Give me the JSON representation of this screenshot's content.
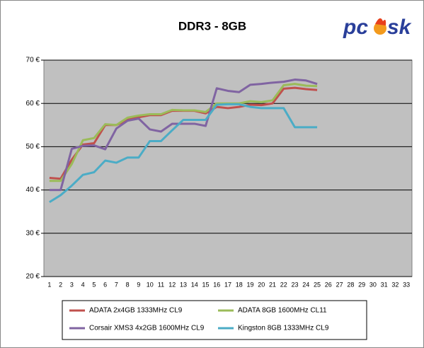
{
  "chart_data": {
    "type": "line",
    "title": "DDR3 - 8GB",
    "categories": [
      "1",
      "2",
      "3",
      "4",
      "5",
      "6",
      "7",
      "8",
      "9",
      "10",
      "11",
      "12",
      "13",
      "14",
      "15",
      "16",
      "17",
      "18",
      "19",
      "20",
      "21",
      "22",
      "23",
      "24",
      "25",
      "26",
      "27",
      "28",
      "29",
      "30",
      "31",
      "32",
      "33"
    ],
    "series": [
      {
        "name": "ADATA 2x4GB 1333MHz CL9",
        "color": "#c0504d",
        "values": [
          42.8,
          42.6,
          47,
          50.5,
          50.8,
          55,
          55,
          56.2,
          56.8,
          57.3,
          57.3,
          58.3,
          58.3,
          58.3,
          57.7,
          59.2,
          58.9,
          59.2,
          59.7,
          59.6,
          60,
          63.4,
          63.6,
          63.3,
          63.1,
          null,
          null,
          null,
          null,
          null,
          null,
          null,
          null
        ]
      },
      {
        "name": "ADATA 8GB 1600MHz CL11",
        "color": "#9bbb59",
        "values": [
          42.1,
          42.1,
          46,
          51.5,
          52,
          55.2,
          55,
          56.7,
          57.2,
          57.5,
          57.5,
          58.5,
          58.4,
          58.4,
          58,
          60,
          60,
          60,
          60.5,
          60.3,
          60.7,
          64.2,
          64.5,
          64.1,
          64,
          null,
          null,
          null,
          null,
          null,
          null,
          null,
          null
        ]
      },
      {
        "name": "Corsair XMS3 4x2GB 1600MHz CL9",
        "color": "#8064a2",
        "values": [
          40,
          40,
          49.5,
          50.2,
          50.3,
          49.4,
          54.2,
          56,
          56.5,
          54,
          53.5,
          55.3,
          55.3,
          55.3,
          54.8,
          63.5,
          62.9,
          62.6,
          64.3,
          64.5,
          64.8,
          65,
          65.5,
          65.3,
          64.5,
          null,
          null,
          null,
          null,
          null,
          null,
          null,
          null
        ]
      },
      {
        "name": "Kingston 8GB 1333MHz CL9",
        "color": "#4bacc6",
        "values": [
          37.2,
          38.8,
          41,
          43.5,
          44.1,
          46.8,
          46.3,
          47.5,
          47.5,
          51.3,
          51.3,
          53.8,
          56.2,
          56.2,
          56.2,
          59.7,
          59.8,
          59.8,
          59.2,
          58.9,
          58.9,
          58.9,
          54.5,
          54.5,
          54.5,
          null,
          null,
          null,
          null,
          null,
          null,
          null,
          null
        ]
      }
    ],
    "ylim": [
      20,
      70
    ],
    "yticks": [
      {
        "value": 20,
        "label": "20 €"
      },
      {
        "value": 30,
        "label": "30 €"
      },
      {
        "value": 40,
        "label": "40 €"
      },
      {
        "value": 50,
        "label": "50 €"
      },
      {
        "value": 60,
        "label": "60 €"
      },
      {
        "value": 70,
        "label": "70 €"
      }
    ],
    "grid": true,
    "legend": "bottom"
  },
  "logo": {
    "left": "pc",
    "right": "sk"
  }
}
